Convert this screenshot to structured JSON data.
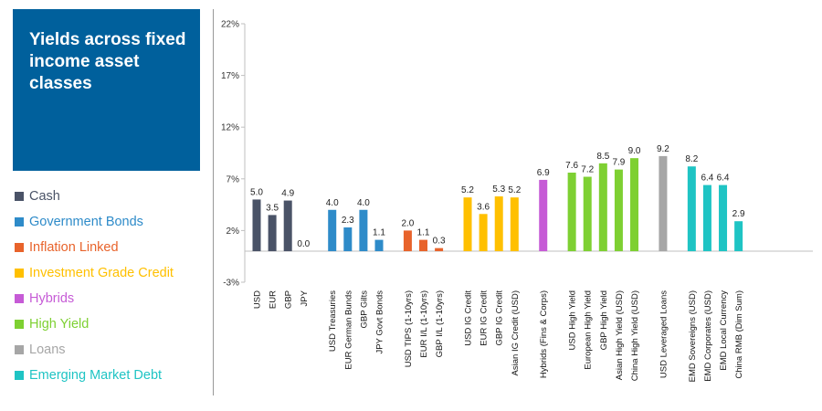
{
  "title": "Yields across fixed income asset classes",
  "legend": [
    {
      "label": "Cash",
      "color": "#4a5367"
    },
    {
      "label": "Government Bonds",
      "color": "#2e8bc9"
    },
    {
      "label": "Inflation Linked",
      "color": "#e8632b"
    },
    {
      "label": "Investment Grade Credit",
      "color": "#ffc000"
    },
    {
      "label": "Hybrids",
      "color": "#c65bd6"
    },
    {
      "label": "High Yield",
      "color": "#7ed032"
    },
    {
      "label": "Loans",
      "color": "#a6a6a6"
    },
    {
      "label": "Emerging Market Debt",
      "color": "#1fc4c4"
    }
  ],
  "chart_data": {
    "type": "bar",
    "title": "Yields across fixed income asset classes",
    "xlabel": "",
    "ylabel": "",
    "ylim": [
      -3,
      22
    ],
    "yticks": [
      "-3%",
      "2%",
      "7%",
      "12%",
      "17%",
      "22%"
    ],
    "grid": false,
    "legend_position": "left",
    "groups": [
      {
        "name": "Cash",
        "color": "#4a5367",
        "categories": [
          "USD",
          "EUR",
          "GBP",
          "JPY"
        ],
        "values": [
          5.0,
          3.5,
          4.9,
          0.0
        ],
        "labels": [
          "5.0",
          "3.5",
          "4.9",
          "0.0"
        ]
      },
      {
        "name": "Government Bonds",
        "color": "#2e8bc9",
        "categories": [
          "USD Treasuries",
          "EUR German Bunds",
          "GBP Gilts",
          "JPY Govt Bonds"
        ],
        "values": [
          4.0,
          2.3,
          4.0,
          1.1
        ],
        "labels": [
          "4.0",
          "2.3",
          "4.0",
          "1.1"
        ]
      },
      {
        "name": "Inflation Linked",
        "color": "#e8632b",
        "categories": [
          "USD TIPS (1-10yrs)",
          "EUR I/L (1-10yrs)",
          "GBP I/L (1-10yrs)"
        ],
        "values": [
          2.0,
          1.1,
          0.3
        ],
        "labels": [
          "2.0",
          "1.1",
          "0.3"
        ]
      },
      {
        "name": "Investment Grade Credit",
        "color": "#ffc000",
        "categories": [
          "USD IG Credit",
          "EUR IG Credit",
          "GBP IG Credit",
          "Asian IG Credit (USD)"
        ],
        "values": [
          5.2,
          3.6,
          5.3,
          5.2
        ],
        "labels": [
          "5.2",
          "3.6",
          "5.3",
          "5.2"
        ]
      },
      {
        "name": "Hybrids",
        "color": "#c65bd6",
        "categories": [
          "Hybrids (Fins & Corps)"
        ],
        "values": [
          6.9
        ],
        "labels": [
          "6.9"
        ]
      },
      {
        "name": "High Yield",
        "color": "#7ed032",
        "categories": [
          "USD High Yield",
          "European High Yield",
          "GBP High Yield",
          "Asian High Yield (USD)",
          "China High Yield (USD)"
        ],
        "values": [
          7.6,
          7.2,
          8.5,
          7.9,
          9.0
        ],
        "labels": [
          "7.6",
          "7.2",
          "8.5",
          "7.9",
          "9.0"
        ]
      },
      {
        "name": "Loans",
        "color": "#a6a6a6",
        "categories": [
          "USD Leveraged Loans"
        ],
        "values": [
          9.2
        ],
        "labels": [
          "9.2"
        ]
      },
      {
        "name": "Emerging Market Debt",
        "color": "#1fc4c4",
        "categories": [
          "EMD Sovereigns (USD)",
          "EMD Corporates (USD)",
          "EMD Local Currency",
          "China RMB (Dim Sum)"
        ],
        "values": [
          8.2,
          6.4,
          6.4,
          2.9
        ],
        "labels": [
          "8.2",
          "6.4",
          "6.4",
          "2.9"
        ]
      }
    ]
  }
}
